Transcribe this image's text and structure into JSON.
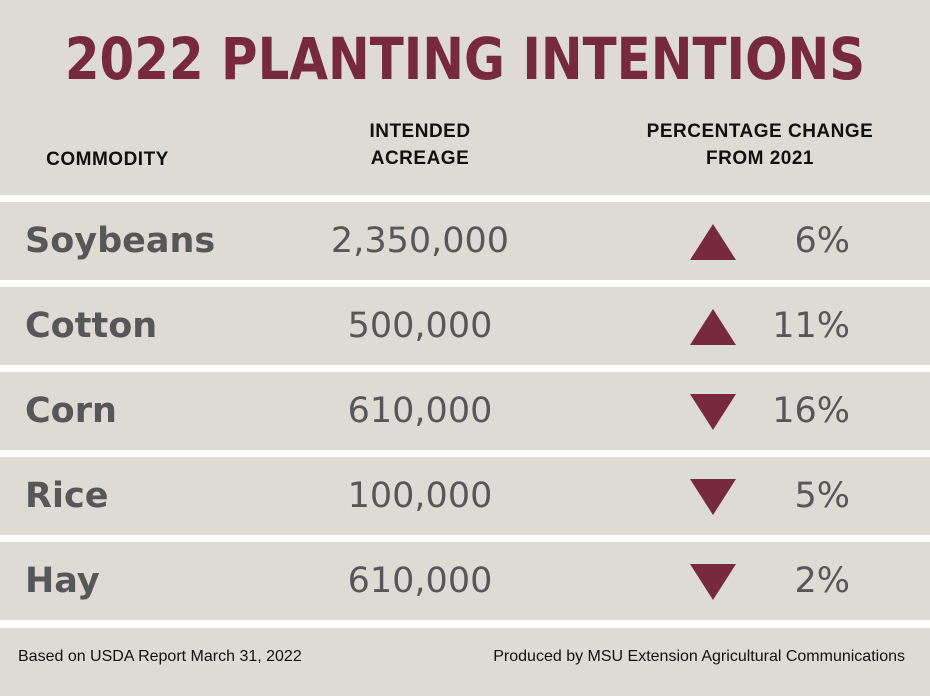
{
  "title": "2022 PLANTING INTENTIONS",
  "headers": {
    "commodity": "COMMODITY",
    "acreage_1": "INTENDED",
    "acreage_2": "ACREAGE",
    "change_1": "PERCENTAGE CHANGE",
    "change_2": "FROM 2021"
  },
  "rows": [
    {
      "commodity": "Soybeans",
      "acreage": "2,350,000",
      "direction": "up",
      "change": "6%"
    },
    {
      "commodity": "Cotton",
      "acreage": "500,000",
      "direction": "up",
      "change": "11%"
    },
    {
      "commodity": "Corn",
      "acreage": "610,000",
      "direction": "down",
      "change": "16%"
    },
    {
      "commodity": "Rice",
      "acreage": "100,000",
      "direction": "down",
      "change": "5%"
    },
    {
      "commodity": "Hay",
      "acreage": "610,000",
      "direction": "down",
      "change": "2%"
    }
  ],
  "footer": {
    "source": "Based on USDA Report March 31, 2022",
    "credit": "Produced by MSU Extension Agricultural Communications"
  },
  "colors": {
    "accent": "#772a3b",
    "background": "#dedbd4",
    "text": "#57575a"
  },
  "chart_data": {
    "type": "table",
    "title": "2022 PLANTING INTENTIONS",
    "columns": [
      "COMMODITY",
      "INTENDED ACREAGE",
      "PERCENTAGE CHANGE FROM 2021"
    ],
    "categories": [
      "Soybeans",
      "Cotton",
      "Corn",
      "Rice",
      "Hay"
    ],
    "series": [
      {
        "name": "Intended Acreage",
        "values": [
          2350000,
          500000,
          610000,
          100000,
          610000
        ]
      },
      {
        "name": "Percentage Change from 2021",
        "values": [
          6,
          11,
          -16,
          -5,
          -2
        ]
      }
    ]
  }
}
